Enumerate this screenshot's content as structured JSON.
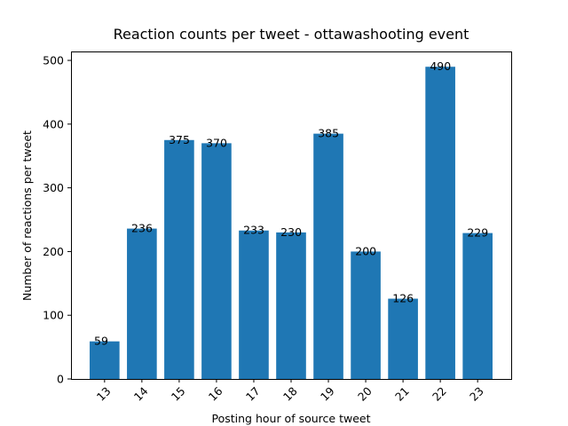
{
  "chart_data": {
    "type": "bar",
    "title": "Reaction counts per tweet - ottawashooting event",
    "xlabel": "Posting hour of source tweet",
    "ylabel": "Number of reactions per tweet",
    "categories": [
      "13",
      "14",
      "15",
      "16",
      "17",
      "18",
      "19",
      "20",
      "21",
      "22",
      "23"
    ],
    "values": [
      59,
      236,
      375,
      370,
      233,
      230,
      385,
      200,
      126,
      490,
      229
    ],
    "ylim": [
      0,
      514
    ],
    "yticks": [
      0,
      100,
      200,
      300,
      400,
      500
    ],
    "bar_color": "#1f77b4",
    "grid": false,
    "xtick_rotation": -45
  }
}
